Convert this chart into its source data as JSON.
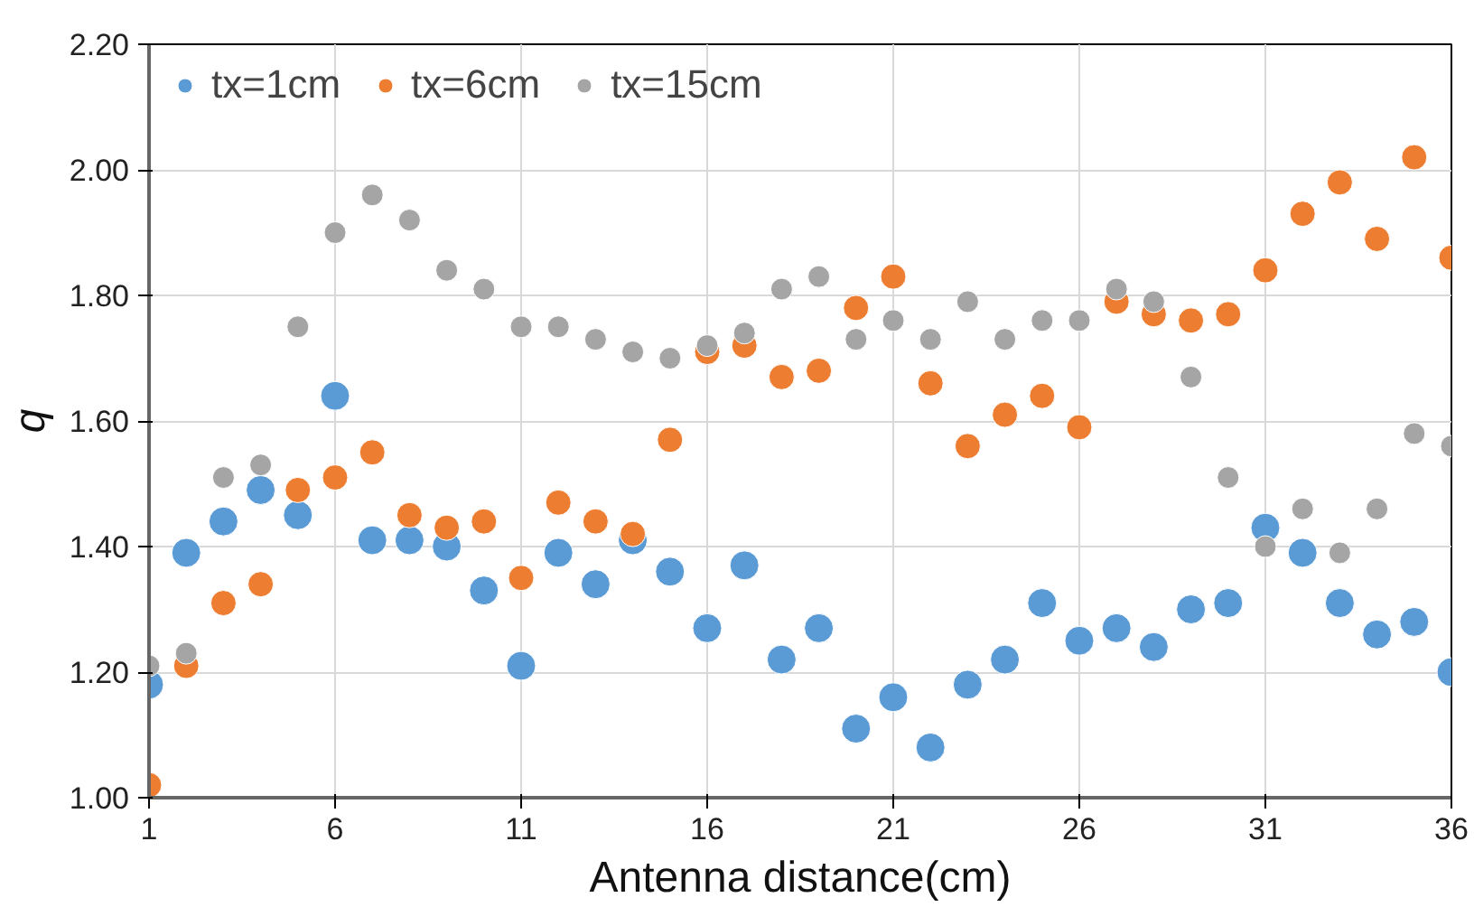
{
  "chart_data": {
    "type": "scatter",
    "xlabel": "Antenna distance(cm)",
    "ylabel": "q",
    "x": [
      1,
      2,
      3,
      4,
      5,
      6,
      7,
      8,
      9,
      10,
      11,
      12,
      13,
      14,
      15,
      16,
      17,
      18,
      19,
      20,
      21,
      22,
      23,
      24,
      25,
      26,
      27,
      28,
      29,
      30,
      31,
      32,
      33,
      34,
      35,
      36
    ],
    "series": [
      {
        "name": "tx=1cm",
        "color": "#5b9bd5",
        "values": [
          1.18,
          1.39,
          1.44,
          1.49,
          1.45,
          1.64,
          1.41,
          1.41,
          1.4,
          1.33,
          1.21,
          1.39,
          1.34,
          1.41,
          1.36,
          1.27,
          1.37,
          1.22,
          1.27,
          1.11,
          1.16,
          1.08,
          1.18,
          1.22,
          1.31,
          1.25,
          1.27,
          1.24,
          1.3,
          1.31,
          1.43,
          1.39,
          1.31,
          1.26,
          1.28,
          1.2
        ]
      },
      {
        "name": "tx=6cm",
        "color": "#ed7d31",
        "values": [
          1.02,
          1.21,
          1.31,
          1.34,
          1.49,
          1.51,
          1.55,
          1.45,
          1.43,
          1.44,
          1.35,
          1.47,
          1.44,
          1.42,
          1.57,
          1.71,
          1.72,
          1.67,
          1.68,
          1.78,
          1.83,
          1.66,
          1.56,
          1.61,
          1.64,
          1.59,
          1.79,
          1.77,
          1.76,
          1.77,
          1.84,
          1.93,
          1.98,
          1.89,
          2.02,
          1.86
        ]
      },
      {
        "name": "tx=15cm",
        "color": "#a5a5a5",
        "values": [
          1.21,
          1.23,
          1.51,
          1.53,
          1.75,
          1.9,
          1.96,
          1.92,
          1.84,
          1.81,
          1.75,
          1.75,
          1.73,
          1.71,
          1.7,
          1.72,
          1.74,
          1.81,
          1.83,
          1.73,
          1.76,
          1.73,
          1.79,
          1.73,
          1.76,
          1.76,
          1.81,
          1.79,
          1.67,
          1.51,
          1.4,
          1.46,
          1.39,
          1.46,
          1.58,
          1.56
        ]
      }
    ],
    "xlim": [
      1,
      36
    ],
    "xticks": [
      1,
      6,
      11,
      16,
      21,
      26,
      31,
      36
    ],
    "ylim": [
      1.0,
      2.2
    ],
    "yticks": [
      {
        "value": 1.0,
        "label": "1.00"
      },
      {
        "value": 1.2,
        "label": "1.20"
      },
      {
        "value": 1.4,
        "label": "1.40"
      },
      {
        "value": 1.6,
        "label": "1.60"
      },
      {
        "value": 1.8,
        "label": "1.80"
      },
      {
        "value": 2.0,
        "label": "2.00"
      },
      {
        "value": 2.2,
        "label": "2.20"
      }
    ],
    "grid": true,
    "legend": "top left",
    "marker": "circle"
  }
}
